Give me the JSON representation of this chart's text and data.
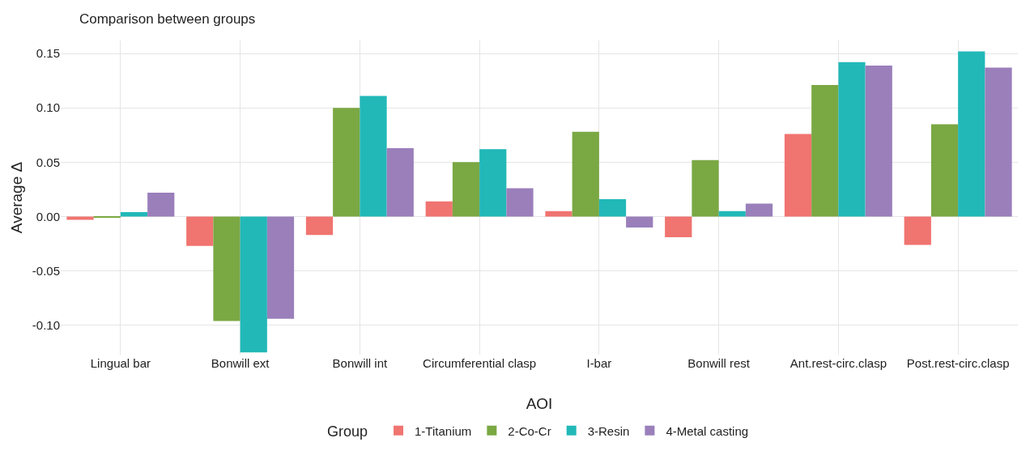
{
  "chart_data": {
    "type": "bar",
    "title": "Comparison between groups",
    "xlabel": "AOI",
    "ylabel": "Average Δ",
    "legend_title": "Group",
    "legend": "bottom",
    "grid": true,
    "categories": [
      "Lingual bar",
      "Bonwill ext",
      "Bonwill int",
      "Circumferential clasp",
      "I-bar",
      "Bonwill rest",
      "Ant.rest-circ.clasp",
      "Post.rest-circ.clasp"
    ],
    "series": [
      {
        "name": "1-Titanium",
        "color": "#f07470",
        "values": [
          -0.003,
          -0.027,
          -0.017,
          0.014,
          0.005,
          -0.019,
          0.076,
          -0.026
        ]
      },
      {
        "name": "2-Co-Cr",
        "color": "#7aa843",
        "values": [
          -0.001,
          -0.096,
          0.1,
          0.05,
          0.078,
          0.052,
          0.121,
          0.085
        ]
      },
      {
        "name": "3-Resin",
        "color": "#22b8b8",
        "values": [
          0.004,
          -0.125,
          0.111,
          0.062,
          0.016,
          0.005,
          0.142,
          0.152
        ]
      },
      {
        "name": "4-Metal casting",
        "color": "#9a7fbb",
        "values": [
          0.022,
          -0.094,
          0.063,
          0.026,
          -0.01,
          0.012,
          0.139,
          0.137
        ]
      }
    ],
    "ylim": [
      -0.127,
      0.162
    ],
    "yticks": [
      {
        "value": -0.1,
        "label": "-0.10"
      },
      {
        "value": -0.05,
        "label": "-0.05"
      },
      {
        "value": 0,
        "label": "0.00"
      },
      {
        "value": 0.05,
        "label": "0.05"
      },
      {
        "value": 0.1,
        "label": "0.10"
      },
      {
        "value": 0.15,
        "label": "0.15"
      }
    ]
  }
}
